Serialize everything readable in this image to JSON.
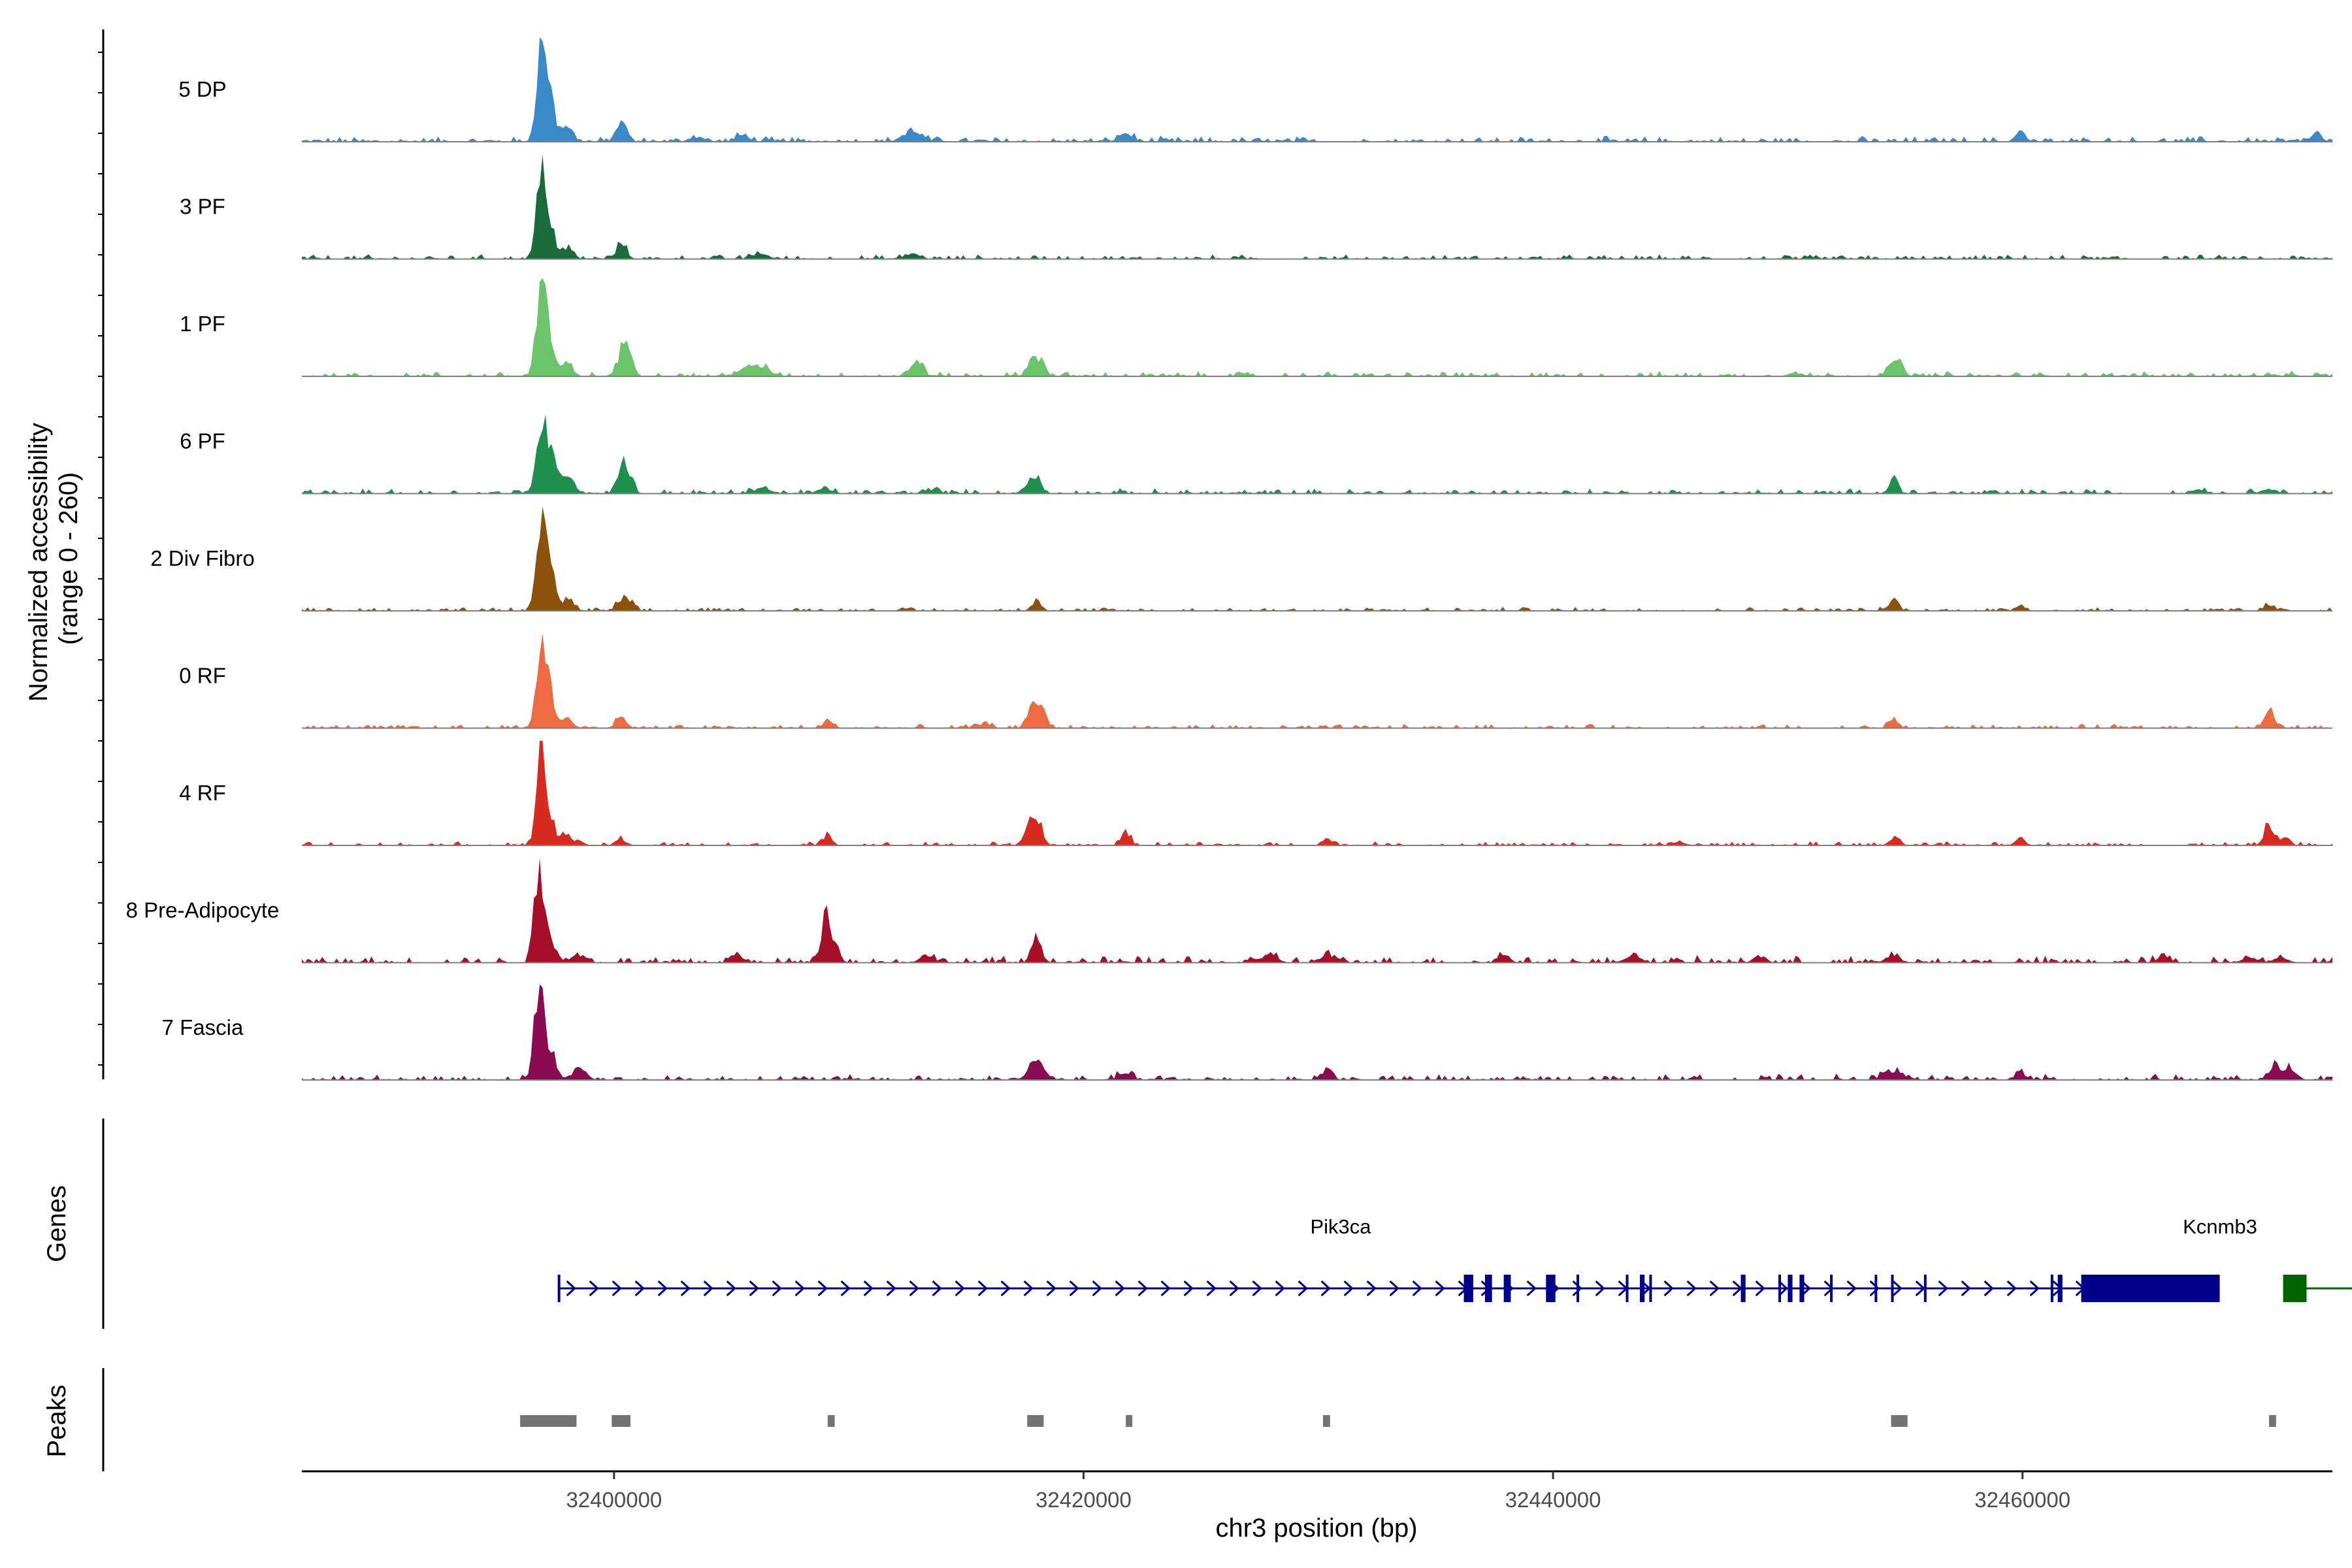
{
  "chart_data": {
    "type": "coverage",
    "title": "",
    "xlabel": "chr3 position (bp)",
    "ylabel_line1": "Normalized accessibility",
    "ylabel_line2": "(range 0 - 260)",
    "y_range": [
      0,
      260
    ],
    "xlim": [
      32386700,
      32473200
    ],
    "x_ticks": [
      {
        "value": 32400000,
        "label": "32400000"
      },
      {
        "value": 32420000,
        "label": "32420000"
      },
      {
        "value": 32440000,
        "label": "32440000"
      },
      {
        "value": 32460000,
        "label": "32460000"
      }
    ],
    "coverage_start": 32386700,
    "coverage_end": 32473200,
    "tracks": [
      {
        "name": "5 DP",
        "color": "#3a8ac9",
        "noise": 0.05,
        "peaks": [
          [
            32396900,
            255,
            200
          ],
          [
            32397300,
            90,
            200
          ],
          [
            32398000,
            35,
            250
          ],
          [
            32400300,
            45,
            220
          ],
          [
            32403500,
            12,
            300
          ],
          [
            32405500,
            15,
            300
          ],
          [
            32412700,
            25,
            400
          ],
          [
            32421800,
            20,
            300
          ],
          [
            32459900,
            25,
            200
          ],
          [
            32472500,
            22,
            200
          ]
        ]
      },
      {
        "name": "3 PF",
        "color": "#1a6b3c",
        "noise": 0.04,
        "peaks": [
          [
            32396900,
            250,
            200
          ],
          [
            32397300,
            70,
            200
          ],
          [
            32398000,
            25,
            250
          ],
          [
            32400300,
            35,
            220
          ],
          [
            32406200,
            15,
            300
          ],
          [
            32412700,
            12,
            300
          ]
        ]
      },
      {
        "name": "1 PF",
        "color": "#6cc46a",
        "noise": 0.045,
        "peaks": [
          [
            32396900,
            255,
            200
          ],
          [
            32397300,
            60,
            200
          ],
          [
            32398000,
            30,
            250
          ],
          [
            32400300,
            45,
            200
          ],
          [
            32400600,
            60,
            200
          ],
          [
            32405600,
            25,
            300
          ],
          [
            32406400,
            20,
            300
          ],
          [
            32412900,
            40,
            250
          ],
          [
            32417800,
            40,
            200
          ],
          [
            32418200,
            35,
            200
          ],
          [
            32450300,
            8,
            300
          ],
          [
            32454500,
            35,
            200
          ],
          [
            32454800,
            20,
            200
          ]
        ]
      },
      {
        "name": "6 PF",
        "color": "#1f8f4e",
        "noise": 0.045,
        "peaks": [
          [
            32396900,
            175,
            200
          ],
          [
            32397300,
            90,
            250
          ],
          [
            32398000,
            40,
            300
          ],
          [
            32400300,
            55,
            200
          ],
          [
            32400600,
            45,
            200
          ],
          [
            32406300,
            15,
            300
          ],
          [
            32409000,
            10,
            300
          ],
          [
            32413500,
            10,
            300
          ],
          [
            32417600,
            15,
            200
          ],
          [
            32418000,
            40,
            200
          ],
          [
            32454500,
            45,
            180
          ],
          [
            32467500,
            10,
            300
          ],
          [
            32470500,
            12,
            300
          ]
        ]
      },
      {
        "name": "2 Div Fibro",
        "color": "#8c510a",
        "noise": 0.035,
        "peaks": [
          [
            32396900,
            240,
            200
          ],
          [
            32397300,
            90,
            200
          ],
          [
            32398000,
            30,
            250
          ],
          [
            32400300,
            25,
            200
          ],
          [
            32400600,
            20,
            200
          ],
          [
            32418000,
            25,
            200
          ],
          [
            32454500,
            30,
            180
          ],
          [
            32459900,
            15,
            200
          ],
          [
            32470500,
            15,
            200
          ]
        ]
      },
      {
        "name": "0 RF",
        "color": "#ee6a42",
        "noise": 0.035,
        "peaks": [
          [
            32396900,
            230,
            200
          ],
          [
            32397300,
            70,
            200
          ],
          [
            32398000,
            25,
            250
          ],
          [
            32400300,
            30,
            200
          ],
          [
            32409100,
            18,
            200
          ],
          [
            32415700,
            10,
            300
          ],
          [
            32417800,
            50,
            200
          ],
          [
            32418200,
            55,
            200
          ],
          [
            32454500,
            20,
            200
          ],
          [
            32470500,
            45,
            200
          ]
        ]
      },
      {
        "name": "4 RF",
        "color": "#d82b1f",
        "noise": 0.035,
        "peaks": [
          [
            32396900,
            235,
            200
          ],
          [
            32397300,
            60,
            200
          ],
          [
            32398000,
            25,
            250
          ],
          [
            32400300,
            15,
            200
          ],
          [
            32409100,
            25,
            180
          ],
          [
            32417700,
            55,
            180
          ],
          [
            32418100,
            55,
            180
          ],
          [
            32421800,
            30,
            200
          ],
          [
            32430400,
            18,
            200
          ],
          [
            32445400,
            10,
            200
          ],
          [
            32454500,
            15,
            200
          ],
          [
            32459900,
            18,
            200
          ],
          [
            32470500,
            50,
            200
          ],
          [
            32471200,
            20,
            200
          ]
        ]
      },
      {
        "name": "8 Pre-Adipocyte",
        "color": "#a50f28",
        "noise": 0.06,
        "peaks": [
          [
            32396800,
            225,
            200
          ],
          [
            32397300,
            50,
            250
          ],
          [
            32398500,
            20,
            300
          ],
          [
            32409000,
            110,
            200
          ],
          [
            32409400,
            45,
            200
          ],
          [
            32405200,
            22,
            200
          ],
          [
            32418000,
            60,
            200
          ],
          [
            32413300,
            15,
            300
          ],
          [
            32428000,
            22,
            250
          ],
          [
            32430400,
            22,
            250
          ],
          [
            32437900,
            18,
            250
          ],
          [
            32443400,
            18,
            300
          ],
          [
            32448800,
            15,
            250
          ],
          [
            32454500,
            15,
            300
          ],
          [
            32466000,
            12,
            300
          ],
          [
            32469700,
            12,
            300
          ],
          [
            32471000,
            12,
            300
          ]
        ]
      },
      {
        "name": "7 Fascia",
        "color": "#8a0b52",
        "noise": 0.05,
        "peaks": [
          [
            32396800,
            230,
            200
          ],
          [
            32397300,
            60,
            250
          ],
          [
            32398500,
            25,
            300
          ],
          [
            32417800,
            40,
            200
          ],
          [
            32418200,
            40,
            200
          ],
          [
            32421800,
            20,
            250
          ],
          [
            32430400,
            30,
            200
          ],
          [
            32454200,
            20,
            200
          ],
          [
            32454700,
            25,
            200
          ],
          [
            32459900,
            18,
            250
          ],
          [
            32470700,
            35,
            200
          ],
          [
            32471400,
            30,
            200
          ]
        ]
      }
    ],
    "genes_label": "Genes",
    "genes": [
      {
        "name": "Pik3ca",
        "strand": "+",
        "color": "#00008b",
        "start": 32397600,
        "end": 32468400,
        "exons": [
          [
            32397600,
            32397700
          ],
          [
            32436200,
            32436600
          ],
          [
            32437100,
            32437400
          ],
          [
            32437900,
            32438200
          ],
          [
            32439700,
            32440100
          ],
          [
            32441000,
            32441100
          ],
          [
            32443100,
            32443200
          ],
          [
            32443700,
            32443900
          ],
          [
            32444100,
            32444200
          ],
          [
            32448000,
            32448200
          ],
          [
            32449600,
            32449700
          ],
          [
            32450000,
            32450200
          ],
          [
            32450500,
            32450700
          ],
          [
            32451800,
            32451900
          ],
          [
            32453700,
            32453800
          ],
          [
            32454400,
            32454500
          ],
          [
            32455800,
            32455900
          ],
          [
            32461200,
            32461300
          ],
          [
            32461500,
            32461700
          ],
          [
            32462500,
            32468400
          ]
        ]
      },
      {
        "name": "Kcnmb3",
        "strand": "-",
        "color": "#006400",
        "start": 32471100,
        "end": 32473200,
        "exons": [
          [
            32471100,
            32472100
          ]
        ]
      }
    ],
    "peaks_label": "Peaks",
    "peak_color": "#737373",
    "peak_regions": [
      [
        32396000,
        32398400
      ],
      [
        32399900,
        32400700
      ],
      [
        32409100,
        32409400
      ],
      [
        32417600,
        32418300
      ],
      [
        32421800,
        32421900
      ],
      [
        32430200,
        32430500
      ],
      [
        32454400,
        32455100
      ],
      [
        32470500,
        32470800
      ]
    ]
  }
}
